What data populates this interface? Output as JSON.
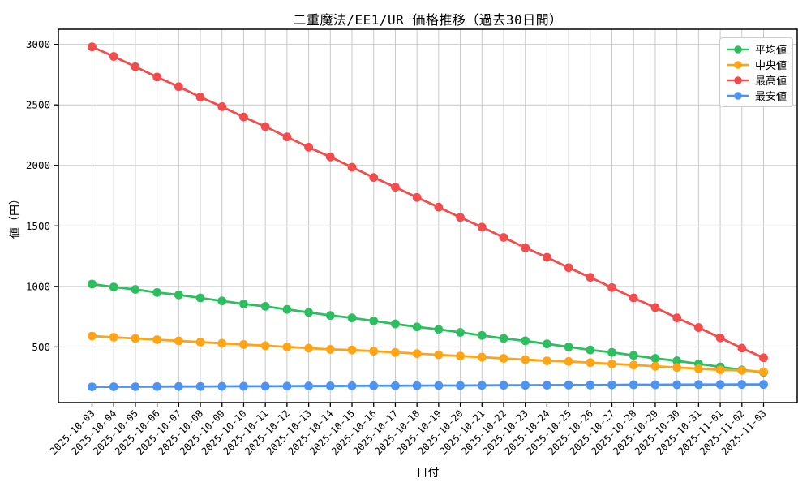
{
  "title": "二重魔法/EE1/UR 価格推移（過去30日間）",
  "axes": {
    "xlabel": "日付",
    "ylabel": "値（円）"
  },
  "chart_data": {
    "type": "line",
    "title": "二重魔法/EE1/UR 価格推移（過去30日間）",
    "xlabel": "日付",
    "ylabel": "値（円）",
    "grid": true,
    "legend_position": "upper right",
    "marker": "circle",
    "ylim": [
      40,
      3125
    ],
    "yticks": [
      500,
      1000,
      1500,
      2000,
      2500,
      3000
    ],
    "x": [
      "2025-10-03",
      "2025-10-04",
      "2025-10-05",
      "2025-10-06",
      "2025-10-07",
      "2025-10-08",
      "2025-10-09",
      "2025-10-10",
      "2025-10-11",
      "2025-10-12",
      "2025-10-13",
      "2025-10-14",
      "2025-10-15",
      "2025-10-16",
      "2025-10-17",
      "2025-10-18",
      "2025-10-19",
      "2025-10-20",
      "2025-10-21",
      "2025-10-22",
      "2025-10-23",
      "2025-10-24",
      "2025-10-25",
      "2025-10-26",
      "2025-10-27",
      "2025-10-28",
      "2025-10-29",
      "2025-10-30",
      "2025-10-31",
      "2025-11-01",
      "2025-11-02",
      "2025-11-03"
    ],
    "series": [
      {
        "id": "average",
        "name": "平均値",
        "color": "#2DBE60",
        "values": [
          1020,
          995,
          975,
          950,
          930,
          905,
          880,
          855,
          835,
          810,
          785,
          760,
          740,
          715,
          690,
          665,
          645,
          620,
          595,
          570,
          550,
          525,
          500,
          475,
          455,
          430,
          405,
          385,
          360,
          335,
          310,
          290
        ]
      },
      {
        "id": "median",
        "name": "中央値",
        "color": "#FFA415",
        "values": [
          590,
          580,
          570,
          560,
          550,
          540,
          530,
          520,
          510,
          500,
          490,
          480,
          475,
          465,
          455,
          445,
          435,
          425,
          415,
          405,
          395,
          385,
          380,
          370,
          360,
          350,
          340,
          330,
          320,
          310,
          305,
          295
        ]
      },
      {
        "id": "max",
        "name": "最高値",
        "color": "#F24C4C",
        "values": [
          2980,
          2900,
          2815,
          2730,
          2650,
          2565,
          2485,
          2400,
          2320,
          2235,
          2150,
          2070,
          1985,
          1900,
          1820,
          1735,
          1655,
          1570,
          1490,
          1405,
          1320,
          1240,
          1155,
          1075,
          990,
          905,
          825,
          740,
          660,
          575,
          490,
          410
        ]
      },
      {
        "id": "min",
        "name": "最安値",
        "color": "#4D94F2",
        "values": [
          170,
          171,
          171,
          172,
          173,
          173,
          174,
          175,
          175,
          176,
          177,
          177,
          178,
          179,
          179,
          180,
          181,
          181,
          182,
          183,
          183,
          184,
          185,
          185,
          186,
          187,
          187,
          188,
          189,
          189,
          190,
          190
        ]
      }
    ]
  },
  "style": {
    "grid_color": "#c9c9c9",
    "spine_color": "#000000",
    "tick_label_color": "#000000"
  }
}
